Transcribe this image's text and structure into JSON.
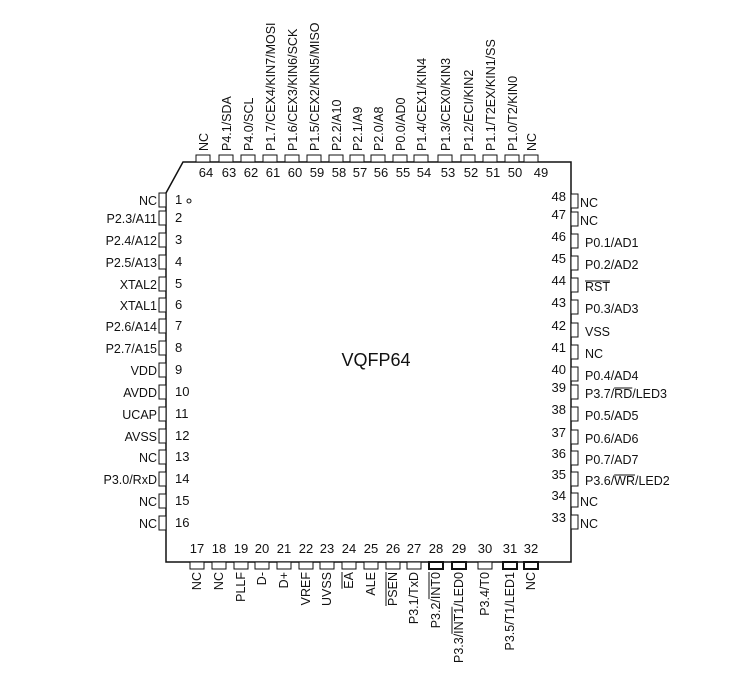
{
  "package": {
    "name": "VQFP64",
    "pin1_marker": "dot"
  },
  "pins": {
    "left": [
      {
        "num": "1",
        "label": "NC",
        "overline": ""
      },
      {
        "num": "2",
        "label": "P2.3/A11",
        "overline": ""
      },
      {
        "num": "3",
        "label": "P2.4/A12",
        "overline": ""
      },
      {
        "num": "4",
        "label": "P2.5/A13",
        "overline": ""
      },
      {
        "num": "5",
        "label": "XTAL2",
        "overline": ""
      },
      {
        "num": "6",
        "label": "XTAL1",
        "overline": ""
      },
      {
        "num": "7",
        "label": "P2.6/A14",
        "overline": ""
      },
      {
        "num": "8",
        "label": "P2.7/A15",
        "overline": ""
      },
      {
        "num": "9",
        "label": "VDD",
        "overline": ""
      },
      {
        "num": "10",
        "label": "AVDD",
        "overline": ""
      },
      {
        "num": "11",
        "label": "UCAP",
        "overline": ""
      },
      {
        "num": "12",
        "label": "AVSS",
        "overline": ""
      },
      {
        "num": "13",
        "label": "NC",
        "overline": ""
      },
      {
        "num": "14",
        "label": "P3.0/RxD",
        "overline": ""
      },
      {
        "num": "15",
        "label": "NC",
        "overline": ""
      },
      {
        "num": "16",
        "label": "NC",
        "overline": ""
      }
    ],
    "bottom": [
      {
        "num": "17",
        "label": "NC",
        "overline": ""
      },
      {
        "num": "18",
        "label": "NC",
        "overline": ""
      },
      {
        "num": "19",
        "label": "PLLF",
        "overline": ""
      },
      {
        "num": "20",
        "label": "D-",
        "overline": ""
      },
      {
        "num": "21",
        "label": "D+",
        "overline": ""
      },
      {
        "num": "22",
        "label": "VREF",
        "overline": ""
      },
      {
        "num": "23",
        "label": "UVSS",
        "overline": ""
      },
      {
        "num": "24",
        "label": "EA",
        "overline": "EA"
      },
      {
        "num": "25",
        "label": "ALE",
        "overline": ""
      },
      {
        "num": "26",
        "label": "PSEN",
        "overline": "PSEN"
      },
      {
        "num": "27",
        "label": "P3.1/TxD",
        "overline": ""
      },
      {
        "num": "28",
        "label": "P3.2/INT0",
        "overline": "INT0"
      },
      {
        "num": "29",
        "label": "P3.3/INT1/LED0",
        "overline": "INT1"
      },
      {
        "num": "30",
        "label": "P3.4/T0",
        "overline": ""
      },
      {
        "num": "31",
        "label": "P3.5/T1/LED1",
        "overline": ""
      },
      {
        "num": "32",
        "label": "NC",
        "overline": ""
      }
    ],
    "right": [
      {
        "num": "33",
        "label": "NC",
        "overline": ""
      },
      {
        "num": "34",
        "label": "NC",
        "overline": ""
      },
      {
        "num": "35",
        "label": "P3.6/WR/LED2",
        "overline": "WR"
      },
      {
        "num": "36",
        "label": "P0.7/AD7",
        "overline": ""
      },
      {
        "num": "37",
        "label": "P0.6/AD6",
        "overline": ""
      },
      {
        "num": "38",
        "label": "P0.5/AD5",
        "overline": ""
      },
      {
        "num": "39",
        "label": "P3.7/RD/LED3",
        "overline": "RD"
      },
      {
        "num": "40",
        "label": "P0.4/AD4",
        "overline": ""
      },
      {
        "num": "41",
        "label": "NC",
        "overline": ""
      },
      {
        "num": "42",
        "label": "VSS",
        "overline": ""
      },
      {
        "num": "43",
        "label": "P0.3/AD3",
        "overline": ""
      },
      {
        "num": "44",
        "label": "RST",
        "overline": "RST"
      },
      {
        "num": "45",
        "label": "P0.2/AD2",
        "overline": ""
      },
      {
        "num": "46",
        "label": "P0.1/AD1",
        "overline": ""
      },
      {
        "num": "47",
        "label": "NC",
        "overline": ""
      },
      {
        "num": "48",
        "label": "NC",
        "overline": ""
      }
    ],
    "top": [
      {
        "num": "49",
        "label": "NC",
        "overline": ""
      },
      {
        "num": "50",
        "label": "P1.0/T2/KIN0",
        "overline": ""
      },
      {
        "num": "51",
        "label": "P1.1/T2EX/KIN1/SS",
        "overline": ""
      },
      {
        "num": "52",
        "label": "P1.2/ECI/KIN2",
        "overline": ""
      },
      {
        "num": "53",
        "label": "P1.3/CEX0/KIN3",
        "overline": ""
      },
      {
        "num": "54",
        "label": "P1.4/CEX1/KIN4",
        "overline": ""
      },
      {
        "num": "55",
        "label": "P0.0/AD0",
        "overline": ""
      },
      {
        "num": "56",
        "label": "P2.0/A8",
        "overline": ""
      },
      {
        "num": "57",
        "label": "P2.1/A9",
        "overline": ""
      },
      {
        "num": "58",
        "label": "P2.2/A10",
        "overline": ""
      },
      {
        "num": "59",
        "label": "P1.5/CEX2/KIN5/MISO",
        "overline": ""
      },
      {
        "num": "60",
        "label": "P1.6/CEX3/KIN6/SCK",
        "overline": ""
      },
      {
        "num": "61",
        "label": "P1.7/CEX4/KIN7/MOSI",
        "overline": ""
      },
      {
        "num": "62",
        "label": "P4.0/SCL",
        "overline": ""
      },
      {
        "num": "63",
        "label": "P4.1/SDA",
        "overline": ""
      },
      {
        "num": "64",
        "label": "NC",
        "overline": ""
      }
    ]
  },
  "colors": {
    "line": "#111111",
    "background": "#ffffff"
  }
}
